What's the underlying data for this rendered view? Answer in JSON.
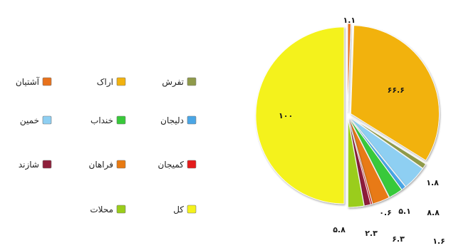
{
  "chart_data": {
    "type": "pie",
    "title": "",
    "legend_position": "left",
    "legend": [
      {
        "name": "تفرش",
        "color": "#8f9a4a"
      },
      {
        "name": "اراک",
        "color": "#f2b20f"
      },
      {
        "name": "آشتیان",
        "color": "#e8721c"
      },
      {
        "name": "دلیجان",
        "color": "#4aa6e6"
      },
      {
        "name": "خنداب",
        "color": "#38c93a"
      },
      {
        "name": "خمین",
        "color": "#8ecff2"
      },
      {
        "name": "کمیجان",
        "color": "#e41b1b"
      },
      {
        "name": "فراهان",
        "color": "#e87a12"
      },
      {
        "name": "شازند",
        "color": "#8e1f3a"
      },
      {
        "name": "کل",
        "color": "#f4f21c"
      },
      {
        "name": "محلات",
        "color": "#9acd1a"
      }
    ],
    "slices": [
      {
        "name": "کل",
        "value": 100,
        "label": "۱۰۰",
        "color": "#f4f21c"
      },
      {
        "name": "آشتیان",
        "value": 1.1,
        "label": "۱.۱",
        "color": "#e8721c"
      },
      {
        "name": "اراک",
        "value": 66.6,
        "label": "۶۶.۶",
        "color": "#f2b20f"
      },
      {
        "name": "تفرش",
        "value": 1.8,
        "label": "۱.۸",
        "color": "#8f9a4a"
      },
      {
        "name": "خمین",
        "value": 8.8,
        "label": "۸.۸",
        "color": "#8ecff2"
      },
      {
        "name": "دلیجان",
        "value": 1.6,
        "label": "۱.۶",
        "color": "#4aa6e6"
      },
      {
        "name": "خنداب",
        "value": 5.1,
        "label": "۵.۱",
        "color": "#38c93a"
      },
      {
        "name": "فراهان",
        "value": 6.3,
        "label": "۶.۳",
        "color": "#e87a12"
      },
      {
        "name": "کمیجان",
        "value": 0.6,
        "label": "۰.۶",
        "color": "#e41b1b"
      },
      {
        "name": "شازند",
        "value": 2.3,
        "label": "۲.۳",
        "color": "#8e1f3a"
      },
      {
        "name": "محلات",
        "value": 5.8,
        "label": "۵.۸",
        "color": "#9acd1a"
      }
    ]
  }
}
